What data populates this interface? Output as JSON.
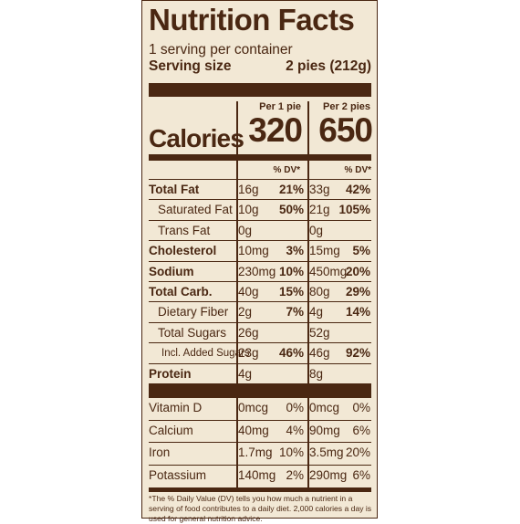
{
  "label": {
    "title": "Nutrition Facts",
    "servings_per_container": "1 serving per container",
    "serving_size_label": "Serving size",
    "serving_size_value": "2 pies (212g)",
    "col1_header": "Per 1 pie",
    "col2_header": "Per 2 pies",
    "calories_label": "Calories",
    "calories_1": "320",
    "calories_2": "650",
    "dv_header": "% DV*",
    "nutrients": [
      {
        "name": "Total Fat",
        "amt1": "16g",
        "dv1": "21%",
        "amt2": "33g",
        "dv2": "42%"
      },
      {
        "name": "Saturated Fat",
        "amt1": "10g",
        "dv1": "50%",
        "amt2": "21g",
        "dv2": "105%"
      },
      {
        "name": "Trans Fat",
        "amt1": "0g",
        "dv1": "",
        "amt2": "0g",
        "dv2": ""
      },
      {
        "name": "Cholesterol",
        "amt1": "10mg",
        "dv1": "3%",
        "amt2": "15mg",
        "dv2": "5%"
      },
      {
        "name": "Sodium",
        "amt1": "230mg",
        "dv1": "10%",
        "amt2": "450mg",
        "dv2": "20%"
      },
      {
        "name": "Total Carb.",
        "amt1": "40g",
        "dv1": "15%",
        "amt2": "80g",
        "dv2": "29%"
      },
      {
        "name": "Dietary Fiber",
        "amt1": "2g",
        "dv1": "7%",
        "amt2": "4g",
        "dv2": "14%"
      },
      {
        "name": "Total Sugars",
        "amt1": "26g",
        "dv1": "",
        "amt2": "52g",
        "dv2": ""
      },
      {
        "name": "Incl. Added Sugars",
        "amt1": "23g",
        "dv1": "46%",
        "amt2": "46g",
        "dv2": "92%"
      },
      {
        "name": "Protein",
        "amt1": "4g",
        "dv1": "",
        "amt2": "8g",
        "dv2": ""
      }
    ],
    "vitamins": [
      {
        "name": "Vitamin D",
        "amt1": "0mcg",
        "dv1": "0%",
        "amt2": "0mcg",
        "dv2": "0%"
      },
      {
        "name": "Calcium",
        "amt1": "40mg",
        "dv1": "4%",
        "amt2": "90mg",
        "dv2": "6%"
      },
      {
        "name": "Iron",
        "amt1": "1.7mg",
        "dv1": "10%",
        "amt2": "3.5mg",
        "dv2": "20%"
      },
      {
        "name": "Potassium",
        "amt1": "140mg",
        "dv1": "2%",
        "amt2": "290mg",
        "dv2": "6%"
      }
    ],
    "footnote": "*The % Daily Value (DV) tells you how much a nutrient in a serving of food contributes to a daily diet. 2,000 calories a day is used for general nutrition advice.",
    "colors": {
      "ink": "#4a2712",
      "background": "#f2e8d5"
    }
  }
}
